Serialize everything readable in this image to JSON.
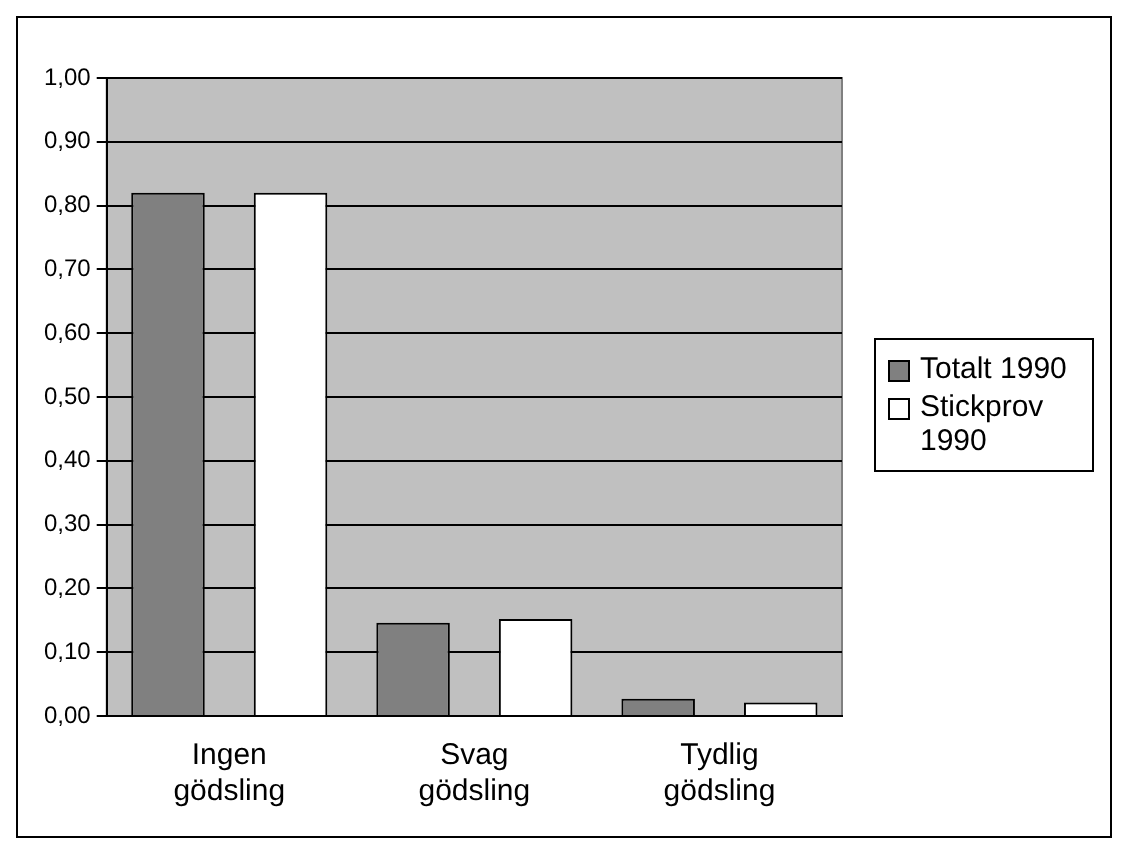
{
  "chart_data": {
    "type": "bar",
    "categories": [
      "Ingen gödsling",
      "Svag gödsling",
      "Tydlig gödsling"
    ],
    "series": [
      {
        "name": "Totalt 1990",
        "color": "#808080",
        "values": [
          0.82,
          0.146,
          0.027
        ]
      },
      {
        "name": "Stickprov 1990",
        "color": "#ffffff",
        "values": [
          0.82,
          0.152,
          0.021
        ]
      }
    ],
    "ylim": [
      0,
      1
    ],
    "yticks": [
      {
        "value": 0,
        "label": "0,00"
      },
      {
        "value": 0.1,
        "label": "0,10"
      },
      {
        "value": 0.2,
        "label": "0,20"
      },
      {
        "value": 0.3,
        "label": "0,30"
      },
      {
        "value": 0.4,
        "label": "0,40"
      },
      {
        "value": 0.5,
        "label": "0,50"
      },
      {
        "value": 0.6,
        "label": "0,60"
      },
      {
        "value": 0.7,
        "label": "0,70"
      },
      {
        "value": 0.8,
        "label": "0,80"
      },
      {
        "value": 0.9,
        "label": "0,90"
      },
      {
        "value": 1,
        "label": "1,00"
      }
    ],
    "grid": "y",
    "legend": "right"
  }
}
